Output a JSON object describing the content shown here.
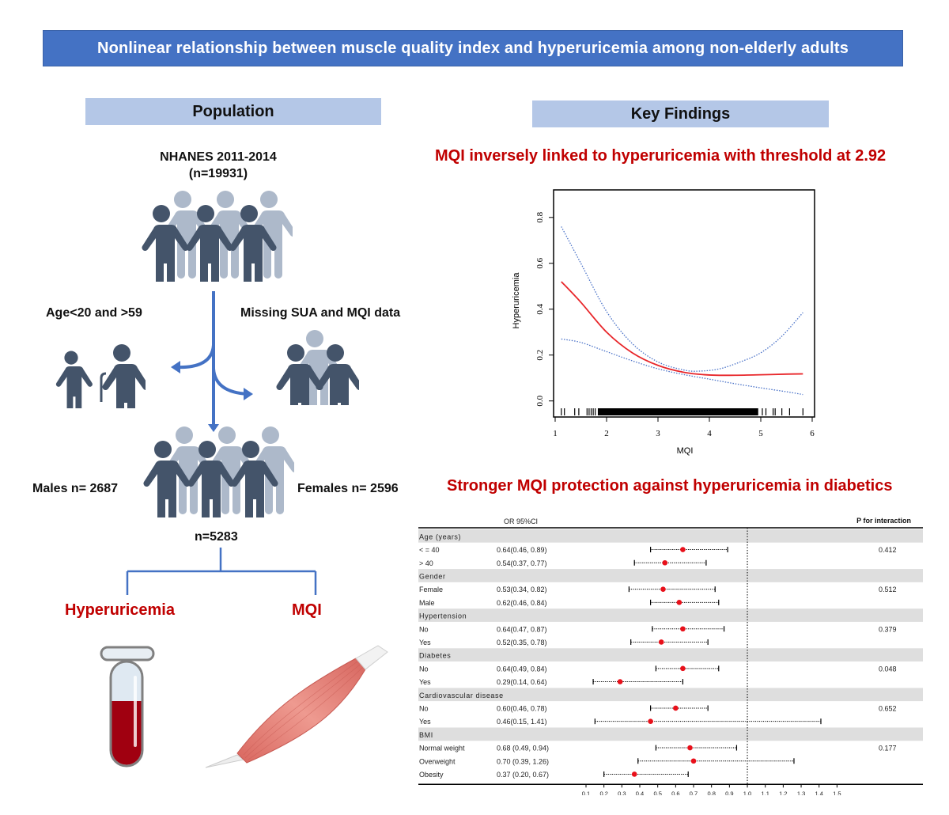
{
  "banner": {
    "title": "Nonlinear relationship between muscle quality index and hyperuricemia among non-elderly adults"
  },
  "population": {
    "heading": "Population",
    "source_line1": "NHANES 2011-2014",
    "source_line2": "(n=19931)",
    "exclusion_left": "Age<20 and >59",
    "exclusion_right": "Missing SUA  and MQI data",
    "males": "Males n= 2687",
    "females": "Females n= 2596",
    "final_n": "n=5283",
    "outcome_left": "Hyperuricemia",
    "outcome_right": "MQI"
  },
  "findings": {
    "heading": "Key Findings",
    "finding1": "MQI inversely linked to hyperuricemia with threshold at 2.92",
    "finding2": "Stronger MQI protection against hyperuricemia in diabetics"
  },
  "colors": {
    "banner": "#4472c4",
    "section": "#b4c7e7",
    "accent_red": "#c00000",
    "ci_blue": "#4a72c8",
    "fit_red": "#e8262a",
    "row_shade": "#dedede"
  },
  "chart_data": [
    {
      "type": "line",
      "title": "",
      "xlabel": "MQI",
      "ylabel": "Hyperuricemia",
      "xlim": [
        1,
        6
      ],
      "ylim": [
        -0.07,
        0.92
      ],
      "xticks": [
        "1",
        "2",
        "3",
        "4",
        "5",
        "6"
      ],
      "yticks": [
        "0.0",
        "0.2",
        "0.4",
        "0.6",
        "0.8"
      ],
      "grid": false,
      "series": [
        {
          "name": "fit",
          "style": "solid-red",
          "x": [
            1.12,
            1.5,
            2.0,
            2.5,
            3.0,
            3.5,
            4.0,
            4.5,
            5.0,
            5.5,
            5.82
          ],
          "y": [
            0.52,
            0.43,
            0.3,
            0.21,
            0.155,
            0.125,
            0.113,
            0.112,
            0.114,
            0.117,
            0.118
          ]
        },
        {
          "name": "upper 95% CI",
          "style": "dotted-blue",
          "x": [
            1.12,
            1.5,
            2.0,
            2.5,
            3.0,
            3.5,
            3.8,
            4.2,
            4.6,
            5.0,
            5.4,
            5.82
          ],
          "y": [
            0.76,
            0.6,
            0.39,
            0.25,
            0.17,
            0.135,
            0.13,
            0.14,
            0.17,
            0.21,
            0.28,
            0.385
          ]
        },
        {
          "name": "lower 95% CI",
          "style": "dotted-blue",
          "x": [
            1.12,
            1.5,
            2.0,
            2.5,
            3.0,
            3.5,
            4.0,
            4.5,
            5.0,
            5.5,
            5.82
          ],
          "y": [
            0.27,
            0.255,
            0.215,
            0.175,
            0.14,
            0.115,
            0.095,
            0.075,
            0.057,
            0.04,
            0.028
          ]
        }
      ],
      "rug": {
        "dense_from": 1.83,
        "dense_to": 4.95,
        "sparse": [
          1.12,
          1.18,
          1.38,
          1.46,
          1.62,
          1.66,
          1.7,
          1.74,
          1.78,
          4.82,
          4.88,
          5.03,
          5.1,
          5.24,
          5.28,
          5.41,
          5.56,
          5.82
        ]
      }
    },
    {
      "type": "forest",
      "column_or": "OR 95%CI",
      "column_p": "P for interaction",
      "xlim": [
        0.1,
        1.5
      ],
      "xticks": [
        "0.1",
        "0.2",
        "0.3",
        "0.4",
        "0.5",
        "0.6",
        "0.7",
        "0.8",
        "0.9",
        "1.0",
        "1.1",
        "1.2",
        "1.3",
        "1.4",
        "1.5"
      ],
      "reference": 1.0,
      "rows": [
        {
          "kind": "group",
          "label": "Age (years)"
        },
        {
          "kind": "item",
          "label": "< = 40",
          "text": "0.64(0.46, 0.89)",
          "or": 0.64,
          "lo": 0.46,
          "hi": 0.89,
          "p": "0.412"
        },
        {
          "kind": "item",
          "label": "> 40",
          "text": "0.54(0.37, 0.77)",
          "or": 0.54,
          "lo": 0.37,
          "hi": 0.77,
          "p": ""
        },
        {
          "kind": "group",
          "label": "Gender"
        },
        {
          "kind": "item",
          "label": "Female",
          "text": "0.53(0.34, 0.82)",
          "or": 0.53,
          "lo": 0.34,
          "hi": 0.82,
          "p": "0.512"
        },
        {
          "kind": "item",
          "label": "Male",
          "text": "0.62(0.46, 0.84)",
          "or": 0.62,
          "lo": 0.46,
          "hi": 0.84,
          "p": ""
        },
        {
          "kind": "group",
          "label": "Hypertension"
        },
        {
          "kind": "item",
          "label": "No",
          "text": "0.64(0.47, 0.87)",
          "or": 0.64,
          "lo": 0.47,
          "hi": 0.87,
          "p": "0.379"
        },
        {
          "kind": "item",
          "label": "Yes",
          "text": "0.52(0.35, 0.78)",
          "or": 0.52,
          "lo": 0.35,
          "hi": 0.78,
          "p": ""
        },
        {
          "kind": "group",
          "label": "Diabetes"
        },
        {
          "kind": "item",
          "label": "No",
          "text": "0.64(0.49, 0.84)",
          "or": 0.64,
          "lo": 0.49,
          "hi": 0.84,
          "p": "0.048"
        },
        {
          "kind": "item",
          "label": "Yes",
          "text": "0.29(0.14, 0.64)",
          "or": 0.29,
          "lo": 0.14,
          "hi": 0.64,
          "p": ""
        },
        {
          "kind": "group",
          "label": "Cardiovascular disease"
        },
        {
          "kind": "item",
          "label": "No",
          "text": "0.60(0.46, 0.78)",
          "or": 0.6,
          "lo": 0.46,
          "hi": 0.78,
          "p": "0.652"
        },
        {
          "kind": "item",
          "label": "Yes",
          "text": "0.46(0.15, 1.41)",
          "or": 0.46,
          "lo": 0.15,
          "hi": 1.41,
          "p": ""
        },
        {
          "kind": "group",
          "label": "BMI"
        },
        {
          "kind": "item",
          "label": "Normal weight",
          "text": "0.68 (0.49, 0.94)",
          "or": 0.68,
          "lo": 0.49,
          "hi": 0.94,
          "p": "0.177"
        },
        {
          "kind": "item",
          "label": "Overweight",
          "text": "0.70 (0.39, 1.26)",
          "or": 0.7,
          "lo": 0.39,
          "hi": 1.26,
          "p": ""
        },
        {
          "kind": "item",
          "label": "Obesity",
          "text": "0.37 (0.20, 0.67)",
          "or": 0.37,
          "lo": 0.2,
          "hi": 0.67,
          "p": ""
        }
      ]
    }
  ]
}
